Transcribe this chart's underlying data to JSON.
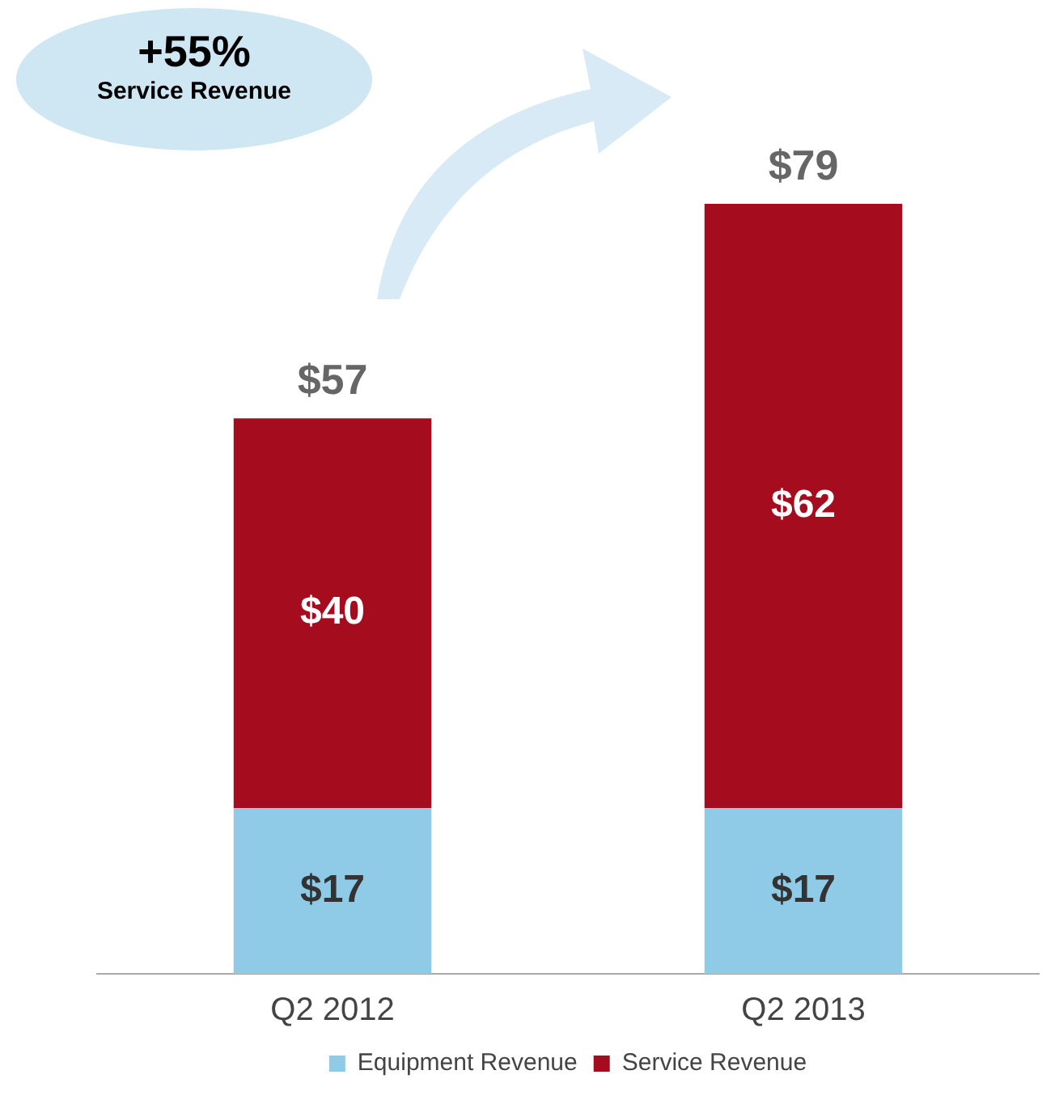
{
  "chart_data": {
    "type": "bar",
    "stacked": true,
    "categories": [
      "Q2 2012",
      "Q2 2013"
    ],
    "series": [
      {
        "name": "Equipment Revenue",
        "color": "#8fcbe6",
        "values": [
          17,
          17
        ],
        "value_labels": [
          "$17",
          "$17"
        ]
      },
      {
        "name": "Service Revenue",
        "color": "#a50d1e",
        "values": [
          40,
          62
        ],
        "value_labels": [
          "$40",
          "$62"
        ]
      }
    ],
    "totals": [
      "$57",
      "$79"
    ],
    "annotations": [
      "+55%",
      "Service Revenue"
    ],
    "legend": "bottom",
    "grid": false
  }
}
